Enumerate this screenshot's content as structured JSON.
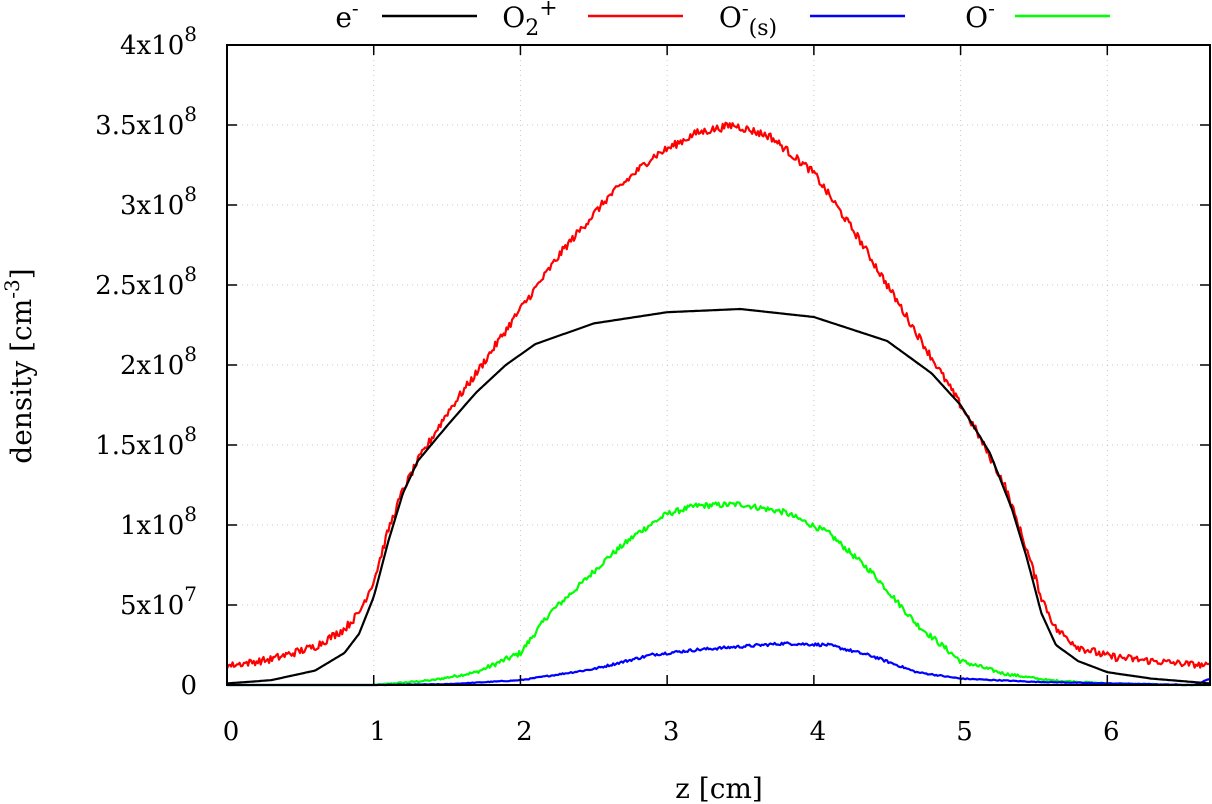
{
  "chart_data": {
    "type": "line",
    "title": "",
    "xlabel": "z [cm]",
    "ylabel": "density [cm",
    "ylabel_sup": "-3",
    "ylabel_end": "]",
    "xlim": [
      0,
      6.7
    ],
    "ylim": [
      0,
      400000000
    ],
    "grid": true,
    "legend_position": "top",
    "x_ticks": [
      {
        "value": 0,
        "label": "0"
      },
      {
        "value": 1,
        "label": "1"
      },
      {
        "value": 2,
        "label": "2"
      },
      {
        "value": 3,
        "label": "3"
      },
      {
        "value": 4,
        "label": "4"
      },
      {
        "value": 5,
        "label": "5"
      },
      {
        "value": 6,
        "label": "6"
      }
    ],
    "y_ticks": [
      {
        "value": 0,
        "base": "0",
        "exp": ""
      },
      {
        "value": 50000000,
        "base": "5x10",
        "exp": "7"
      },
      {
        "value": 100000000,
        "base": "1x10",
        "exp": "8"
      },
      {
        "value": 150000000,
        "base": "1.5x10",
        "exp": "8"
      },
      {
        "value": 200000000,
        "base": "2x10",
        "exp": "8"
      },
      {
        "value": 250000000,
        "base": "2.5x10",
        "exp": "8"
      },
      {
        "value": 300000000,
        "base": "3x10",
        "exp": "8"
      },
      {
        "value": 350000000,
        "base": "3.5x10",
        "exp": "8"
      },
      {
        "value": 400000000,
        "base": "4x10",
        "exp": "8"
      }
    ],
    "series": [
      {
        "name": "e-",
        "legend_base": "e",
        "legend_sup": "-",
        "legend_sub": "",
        "color": "#000000",
        "noise": 0,
        "x": [
          0,
          0.3,
          0.6,
          0.8,
          0.9,
          1.0,
          1.1,
          1.2,
          1.3,
          1.5,
          1.7,
          1.9,
          2.1,
          2.5,
          3.0,
          3.5,
          4.0,
          4.5,
          4.8,
          5.0,
          5.2,
          5.35,
          5.45,
          5.55,
          5.65,
          5.8,
          6.0,
          6.3,
          6.7
        ],
        "y": [
          1000000,
          3000000,
          9000000,
          20000000,
          32000000,
          55000000,
          90000000,
          120000000,
          140000000,
          162000000,
          183000000,
          200000000,
          213000000,
          226000000,
          233000000,
          235000000,
          230000000,
          215000000,
          195000000,
          175000000,
          145000000,
          110000000,
          80000000,
          45000000,
          25000000,
          15000000,
          8000000,
          4000000,
          1000000
        ]
      },
      {
        "name": "O2+",
        "legend_base": "O",
        "legend_sup": "+",
        "legend_sub": "2",
        "color": "#ff0000",
        "noise": 2500000,
        "x": [
          0,
          0.3,
          0.6,
          0.8,
          0.9,
          1.0,
          1.1,
          1.2,
          1.3,
          1.5,
          1.7,
          2.0,
          2.3,
          2.6,
          2.9,
          3.2,
          3.45,
          3.7,
          4.0,
          4.3,
          4.6,
          4.9,
          5.1,
          5.3,
          5.45,
          5.55,
          5.65,
          5.8,
          6.0,
          6.3,
          6.7
        ],
        "y": [
          12000000,
          16000000,
          24000000,
          35000000,
          45000000,
          65000000,
          97000000,
          122000000,
          140000000,
          170000000,
          195000000,
          235000000,
          273000000,
          305000000,
          330000000,
          345000000,
          350000000,
          343000000,
          320000000,
          280000000,
          235000000,
          190000000,
          160000000,
          125000000,
          85000000,
          55000000,
          35000000,
          24000000,
          18000000,
          15000000,
          12000000
        ]
      },
      {
        "name": "O-(s)",
        "legend_base": "O",
        "legend_sup": "-",
        "legend_sub": "(s)",
        "color": "#0000ff",
        "noise": 900000,
        "x": [
          0,
          1.0,
          1.5,
          2.0,
          2.5,
          2.9,
          3.2,
          3.5,
          3.8,
          4.1,
          4.4,
          4.7,
          5.0,
          5.5,
          6.0,
          6.6,
          6.7
        ],
        "y": [
          0,
          0,
          500000,
          3000000,
          10000000,
          19000000,
          22000000,
          24000000,
          26000000,
          25000000,
          18000000,
          8000000,
          4000000,
          2000000,
          1000000,
          0,
          4000000
        ]
      },
      {
        "name": "O-",
        "legend_base": "O",
        "legend_sup": "-",
        "legend_sub": "",
        "color": "#00ff00",
        "noise": 1800000,
        "x": [
          0,
          1.0,
          1.4,
          1.7,
          2.0,
          2.2,
          2.4,
          2.6,
          2.8,
          3.0,
          3.2,
          3.5,
          3.8,
          4.1,
          4.4,
          4.7,
          5.0,
          5.3,
          5.6,
          6.0,
          6.5,
          6.7
        ],
        "y": [
          0,
          0,
          3000000,
          8000000,
          20000000,
          45000000,
          62000000,
          80000000,
          95000000,
          107000000,
          112000000,
          113000000,
          108000000,
          95000000,
          70000000,
          38000000,
          15000000,
          7000000,
          3000000,
          1000000,
          0,
          0
        ]
      }
    ]
  }
}
